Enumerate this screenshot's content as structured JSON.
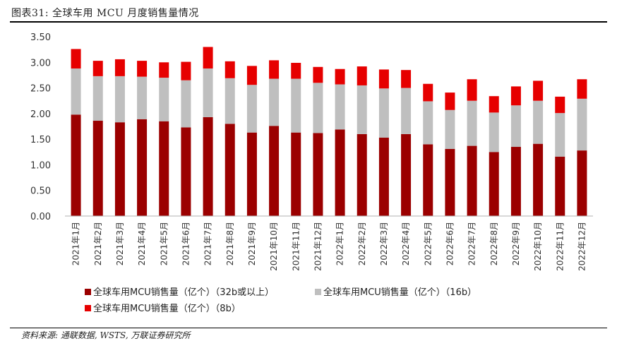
{
  "figure": {
    "title": "图表31:  全球车用 MCU 月度销售量情况",
    "source": "资料来源:  通联数据,  WSTS,  万联证券研究所"
  },
  "chart_data": {
    "type": "bar",
    "stacked": true,
    "title": "图表31:  全球车用 MCU 月度销售量情况",
    "ylim": [
      0,
      3.5
    ],
    "yticks": [
      "0.00",
      "0.50",
      "1.00",
      "1.50",
      "2.00",
      "2.50",
      "3.00",
      "3.50"
    ],
    "ytick_values": [
      0,
      0.5,
      1.0,
      1.5,
      2.0,
      2.5,
      3.0,
      3.5
    ],
    "categories": [
      "2021年1月",
      "2021年2月",
      "2021年3月",
      "2021年4月",
      "2021年5月",
      "2021年6月",
      "2021年7月",
      "2021年8月",
      "2021年9月",
      "2021年10月",
      "2021年11月",
      "2021年12月",
      "2022年1月",
      "2022年2月",
      "2022年3月",
      "2022年4月",
      "2022年5月",
      "2022年6月",
      "2022年7月",
      "2022年8月",
      "2022年9月",
      "2022年10月",
      "2022年11月",
      "2022年12月"
    ],
    "series": [
      {
        "name": "全球车用MCU销售量（亿个）（32b或以上）",
        "color": "#9b0000",
        "values": [
          1.98,
          1.86,
          1.83,
          1.89,
          1.85,
          1.73,
          1.93,
          1.8,
          1.63,
          1.76,
          1.63,
          1.62,
          1.69,
          1.6,
          1.53,
          1.6,
          1.4,
          1.31,
          1.37,
          1.25,
          1.35,
          1.41,
          1.16,
          1.28
        ]
      },
      {
        "name": "全球车用MCU销售量（亿个）（16b）",
        "color": "#bfbfbf",
        "values": [
          0.9,
          0.87,
          0.9,
          0.83,
          0.85,
          0.92,
          0.95,
          0.89,
          0.93,
          0.92,
          1.05,
          0.98,
          0.88,
          0.95,
          0.96,
          0.9,
          0.84,
          0.76,
          0.88,
          0.77,
          0.81,
          0.84,
          0.85,
          1.01
        ]
      },
      {
        "name": "全球车用MCU销售量（亿个）（8b）",
        "color": "#e60000",
        "values": [
          0.38,
          0.3,
          0.33,
          0.31,
          0.3,
          0.36,
          0.42,
          0.33,
          0.37,
          0.36,
          0.31,
          0.31,
          0.3,
          0.37,
          0.37,
          0.35,
          0.34,
          0.34,
          0.42,
          0.32,
          0.37,
          0.39,
          0.32,
          0.38
        ]
      }
    ]
  }
}
